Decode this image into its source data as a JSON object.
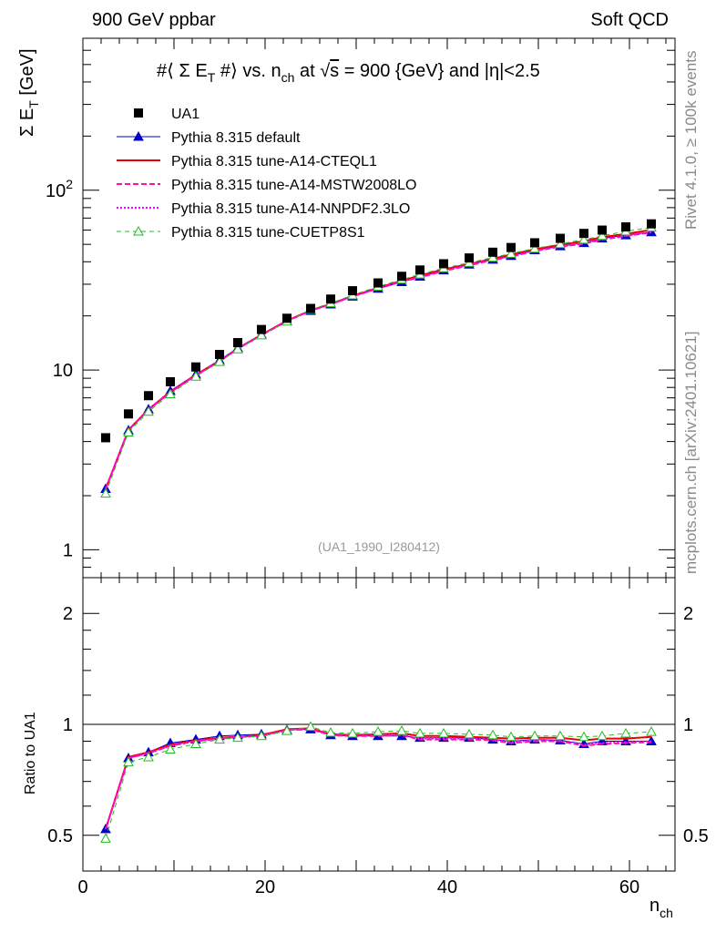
{
  "header": {
    "left_title": "900 GeV ppbar",
    "right_title": "Soft QCD",
    "side_label_top": "Rivet 4.1.0, ≥ 100k events",
    "side_label_bottom": "mcplots.cern.ch [arXiv:2401.10621]"
  },
  "plot_title": {
    "part1": "#⟨ Σ E",
    "sub1": "T",
    "part2": " #⟩ vs. n",
    "sub2": "ch",
    "part3": " at ",
    "sqrt_sym": "√",
    "sqrt_arg": "s",
    "part4": " = 900 {GeV} and |η|<2.5"
  },
  "watermark": "(UA1_1990_I280412)",
  "axes": {
    "ylabel_main": "Σ E",
    "ylabel_main_sub": "T",
    "ylabel_main_unit": " [GeV]",
    "ylabel_ratio": "Ratio to UA1",
    "xlabel": "n",
    "xlabel_sub": "ch",
    "main_yticks": [
      {
        "value": 1,
        "text": "1"
      },
      {
        "value": 10,
        "text": "10"
      },
      {
        "value": 100,
        "text": "10",
        "sup": "2"
      }
    ],
    "ratio_yticks": [
      {
        "value": 0.5,
        "text": "0.5"
      },
      {
        "value": 1,
        "text": "1"
      },
      {
        "value": 2,
        "text": "2"
      }
    ],
    "xticks": [
      {
        "value": 0,
        "text": "0"
      },
      {
        "value": 20,
        "text": "20"
      },
      {
        "value": 40,
        "text": "40"
      },
      {
        "value": 60,
        "text": "60"
      }
    ]
  },
  "legend": [
    {
      "label": "UA1",
      "color": "#000000",
      "style": "marker-square"
    },
    {
      "label": "Pythia 8.315 default",
      "color": "#0000cc",
      "style": "line-triangle"
    },
    {
      "label": "Pythia 8.315 tune-A14-CTEQL1",
      "color": "#ee0000",
      "style": "line-solid"
    },
    {
      "label": "Pythia 8.315 tune-A14-MSTW2008LO",
      "color": "#ff1493",
      "style": "line-dashed"
    },
    {
      "label": "Pythia 8.315 tune-A14-NNPDF2.3LO",
      "color": "#ff00ff",
      "style": "line-dotted"
    },
    {
      "label": "Pythia 8.315 tune-CUETP8S1",
      "color": "#22bb22",
      "style": "line-dashed-opentriangle"
    }
  ],
  "chart_data": {
    "type": "scatter",
    "title": "#⟨ Σ E_T #⟩ vs. n_ch at √s = 900 {GeV} and |η|<2.5",
    "xlabel": "n_ch",
    "ylabel": "Σ E_T [GeV]",
    "ratio_ylabel": "Ratio to UA1",
    "xlim": [
      0,
      65
    ],
    "ylim": [
      0.7,
      700
    ],
    "yscale": "log",
    "ratio_ylim": [
      0.4,
      2.5
    ],
    "ratio_yscale": "log",
    "x": [
      2.5,
      5,
      7.2,
      9.6,
      12.4,
      15,
      17,
      19.6,
      22.4,
      25,
      27.2,
      29.6,
      32.4,
      35,
      37,
      39.6,
      42.4,
      45,
      47,
      49.6,
      52.4,
      55,
      57,
      59.6,
      62.4
    ],
    "series": [
      {
        "name": "UA1",
        "color": "#000000",
        "values": [
          4.2,
          5.7,
          7.2,
          8.6,
          10.4,
          12.2,
          14.2,
          16.8,
          19.4,
          22,
          24.8,
          27.6,
          30.5,
          33.2,
          36,
          39,
          42,
          45.2,
          48,
          51,
          54,
          57.5,
          60,
          62.5,
          65
        ]
      },
      {
        "name": "Pythia 8.315 default",
        "color": "#0000cc",
        "ratio": [
          0.52,
          0.81,
          0.84,
          0.89,
          0.91,
          0.93,
          0.935,
          0.94,
          0.965,
          0.97,
          0.935,
          0.93,
          0.93,
          0.93,
          0.92,
          0.92,
          0.92,
          0.91,
          0.9,
          0.91,
          0.905,
          0.885,
          0.9,
          0.9,
          0.9
        ]
      },
      {
        "name": "Pythia 8.315 tune-A14-CTEQL1",
        "color": "#ee0000",
        "ratio": [
          0.52,
          0.815,
          0.84,
          0.88,
          0.905,
          0.92,
          0.925,
          0.935,
          0.97,
          0.975,
          0.94,
          0.935,
          0.94,
          0.945,
          0.93,
          0.93,
          0.925,
          0.92,
          0.915,
          0.92,
          0.92,
          0.905,
          0.915,
          0.915,
          0.925
        ]
      },
      {
        "name": "Pythia 8.315 tune-A14-MSTW2008LO",
        "color": "#ff1493",
        "ratio": [
          0.52,
          0.81,
          0.835,
          0.875,
          0.9,
          0.915,
          0.925,
          0.93,
          0.965,
          0.97,
          0.935,
          0.93,
          0.93,
          0.935,
          0.91,
          0.91,
          0.91,
          0.905,
          0.89,
          0.9,
          0.9,
          0.875,
          0.885,
          0.89,
          0.895
        ]
      },
      {
        "name": "Pythia 8.315 tune-A14-NNPDF2.3LO",
        "color": "#ff00ff",
        "ratio": [
          0.52,
          0.81,
          0.835,
          0.875,
          0.9,
          0.915,
          0.925,
          0.93,
          0.965,
          0.975,
          0.935,
          0.93,
          0.935,
          0.935,
          0.915,
          0.915,
          0.915,
          0.91,
          0.895,
          0.905,
          0.9,
          0.88,
          0.89,
          0.895,
          0.9
        ]
      },
      {
        "name": "Pythia 8.315 tune-CUETP8S1",
        "color": "#22bb22",
        "ratio": [
          0.49,
          0.79,
          0.815,
          0.855,
          0.885,
          0.91,
          0.92,
          0.93,
          0.96,
          0.985,
          0.95,
          0.945,
          0.955,
          0.96,
          0.945,
          0.945,
          0.94,
          0.935,
          0.925,
          0.93,
          0.93,
          0.925,
          0.93,
          0.945,
          0.955
        ]
      }
    ]
  }
}
